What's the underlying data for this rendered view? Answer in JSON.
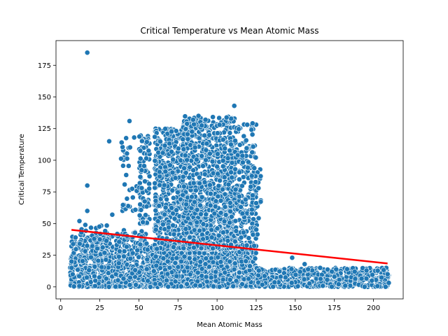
{
  "chart_data": {
    "type": "scatter",
    "title": "Critical Temperature vs Mean Atomic Mass",
    "xlabel": "Mean Atomic Mass",
    "ylabel": "Critical Temperature",
    "xlim": [
      -3,
      219
    ],
    "ylim": [
      -9.5,
      194.5
    ],
    "xticks": [
      0,
      25,
      50,
      75,
      100,
      125,
      150,
      175,
      200
    ],
    "yticks": [
      0,
      25,
      50,
      75,
      100,
      125,
      150,
      175
    ],
    "grid": false,
    "point_color": "#1f77b4",
    "point_edge_color": "#ffffff",
    "regression_color": "#ff0000",
    "regression_line": {
      "x": [
        6.9,
        209
      ],
      "y": [
        45,
        18.5
      ]
    },
    "clusters": [
      {
        "x": [
          6,
          40
        ],
        "y": [
          0,
          40
        ],
        "n": 420
      },
      {
        "x": [
          12,
          30
        ],
        "y": [
          20,
          50
        ],
        "n": 70
      },
      {
        "x": [
          35,
          55
        ],
        "y": [
          0,
          45
        ],
        "n": 260
      },
      {
        "x": [
          38,
          52
        ],
        "y": [
          60,
          120
        ],
        "n": 40
      },
      {
        "x": [
          50,
          57
        ],
        "y": [
          50,
          120
        ],
        "n": 90
      },
      {
        "x": [
          55,
          125
        ],
        "y": [
          0,
          35
        ],
        "n": 1300
      },
      {
        "x": [
          60,
          80
        ],
        "y": [
          30,
          125
        ],
        "n": 520
      },
      {
        "x": [
          78,
          112
        ],
        "y": [
          30,
          135
        ],
        "n": 1000
      },
      {
        "x": [
          108,
          125
        ],
        "y": [
          30,
          130
        ],
        "n": 180
      },
      {
        "x": [
          114,
          120
        ],
        "y": [
          20,
          122
        ],
        "n": 60
      },
      {
        "x": [
          122,
          128
        ],
        "y": [
          40,
          95
        ],
        "n": 40
      },
      {
        "x": [
          125,
          210
        ],
        "y": [
          0,
          15
        ],
        "n": 520
      }
    ],
    "points": [
      {
        "x": 17,
        "y": 185
      },
      {
        "x": 17,
        "y": 80
      },
      {
        "x": 17,
        "y": 60
      },
      {
        "x": 31,
        "y": 115
      },
      {
        "x": 44,
        "y": 131
      },
      {
        "x": 111,
        "y": 143
      },
      {
        "x": 7,
        "y": 20
      },
      {
        "x": 7,
        "y": 15
      },
      {
        "x": 12,
        "y": 52
      },
      {
        "x": 33,
        "y": 57
      },
      {
        "x": 39,
        "y": 114
      },
      {
        "x": 47,
        "y": 118
      },
      {
        "x": 156,
        "y": 18
      },
      {
        "x": 148,
        "y": 23
      },
      {
        "x": 209,
        "y": 10
      },
      {
        "x": 199,
        "y": 5
      },
      {
        "x": 188,
        "y": 12
      },
      {
        "x": 175,
        "y": 8
      }
    ]
  }
}
